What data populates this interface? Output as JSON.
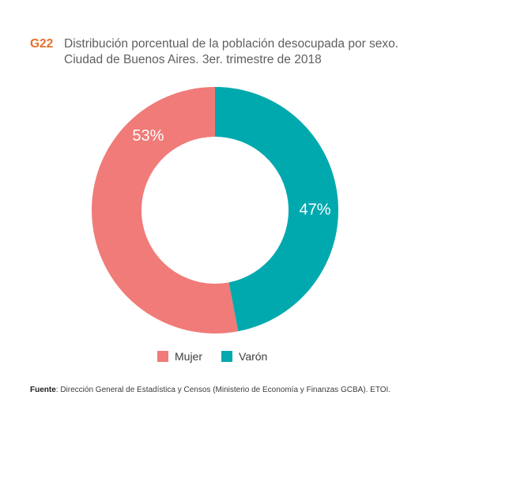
{
  "figure": {
    "id": "G22",
    "title_line1": "Distribución porcentual de la población desocupada por sexo.",
    "title_line2": "Ciudad de Buenos Aires. 3er. trimestre de 2018"
  },
  "chart_data": {
    "type": "pie",
    "variant": "donut",
    "title": "Distribución porcentual de la población desocupada por sexo. Ciudad de Buenos Aires. 3er. trimestre de 2018",
    "categories": [
      "Mujer",
      "Varón"
    ],
    "values": [
      53,
      47
    ],
    "labels": [
      "53%",
      "47%"
    ],
    "colors": [
      "#f07b78",
      "#00a9ae"
    ],
    "legend_position": "bottom"
  },
  "legend": {
    "items": [
      {
        "label": "Mujer",
        "color": "#f07b78"
      },
      {
        "label": "Varón",
        "color": "#00a9ae"
      }
    ]
  },
  "source": {
    "label": "Fuente",
    "text": ": Dirección General de Estadística y Censos (Ministerio de Economía y Finanzas GCBA). ETOI."
  }
}
